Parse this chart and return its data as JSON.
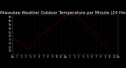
{
  "title": "Milwaukee Weather Outdoor Temperature per Minute (24 Hours)",
  "title_fontsize": 3.8,
  "background_color": "#000000",
  "plot_bg_color": "#000000",
  "line_color": "#ff0000",
  "grid_color": "#555555",
  "text_color": "#ffffff",
  "ylim": [
    15,
    68
  ],
  "yticks": [
    20,
    25,
    30,
    35,
    40,
    45,
    50,
    55,
    60,
    65
  ],
  "num_points": 1440,
  "xtick_positions": [
    0,
    60,
    120,
    180,
    240,
    300,
    360,
    420,
    480,
    540,
    600,
    660,
    720,
    780,
    840,
    900,
    960,
    1020,
    1080,
    1140,
    1200,
    1260,
    1320,
    1380,
    1439
  ],
  "xtick_labels": [
    "12a",
    "1",
    "2",
    "3",
    "4",
    "5",
    "6",
    "7",
    "8",
    "9",
    "10",
    "11",
    "12p",
    "1",
    "2",
    "3",
    "4",
    "5",
    "6",
    "7",
    "8",
    "9",
    "10",
    "11",
    "12a"
  ]
}
